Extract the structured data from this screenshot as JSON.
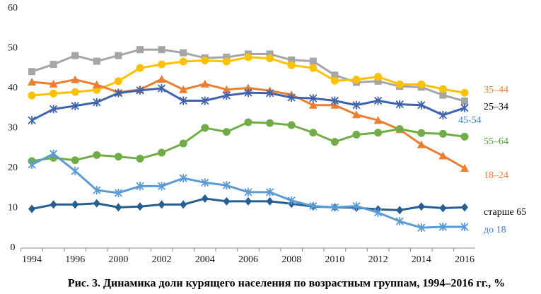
{
  "chart_data": {
    "type": "line",
    "caption": "Рис. 3. Динамика доли курящего населения по возрастным группам, 1994–2016 гг., %",
    "categories": [
      "1994",
      null,
      "1996",
      null,
      "2000",
      null,
      "2002",
      null,
      "2004",
      null,
      "2006",
      null,
      "2008",
      null,
      "2010",
      null,
      "2012",
      null,
      "2014",
      null,
      "2016"
    ],
    "ylim": [
      0,
      60
    ],
    "yticks": [
      0,
      10,
      20,
      30,
      40,
      50,
      60
    ],
    "grid": false,
    "series": [
      {
        "name": "25–34",
        "color": "#a5a5a5",
        "label_color": "#000000",
        "marker": "square",
        "values": [
          44.2,
          46.0,
          48.2,
          46.8,
          48.2,
          49.7,
          49.7,
          48.9,
          47.6,
          47.8,
          48.6,
          48.6,
          47.1,
          46.8,
          43.3,
          41.5,
          41.8,
          40.5,
          40.3,
          38.3,
          36.8
        ]
      },
      {
        "name": "35–44",
        "color": "#ffc000",
        "label_color": "#e07b39",
        "marker": "circle",
        "values": [
          38.2,
          38.7,
          39.1,
          39.6,
          41.8,
          45.1,
          46.0,
          46.7,
          47.0,
          46.7,
          47.8,
          47.5,
          45.8,
          45.1,
          41.9,
          42.2,
          42.9,
          41.0,
          41.0,
          39.8,
          38.9
        ]
      },
      {
        "name": "18–24",
        "color": "#ed7d31",
        "label_color": "#ed7d31",
        "marker": "triangle",
        "values": [
          41.6,
          41.1,
          42.2,
          40.9,
          39.0,
          39.7,
          42.3,
          39.7,
          41.1,
          39.7,
          40.1,
          39.4,
          38.4,
          35.8,
          35.8,
          33.4,
          32.0,
          29.7,
          25.9,
          23.1,
          20.0
        ]
      },
      {
        "name": "45-54",
        "color": "#3f64ad",
        "label_color": "#3f7fc4",
        "marker": "star",
        "values": [
          32.0,
          34.8,
          35.6,
          36.5,
          38.8,
          39.5,
          40.0,
          36.9,
          36.9,
          38.2,
          38.9,
          38.8,
          37.7,
          37.5,
          36.9,
          35.8,
          36.9,
          36.0,
          35.8,
          33.3,
          35.1
        ]
      },
      {
        "name": "55–64",
        "color": "#70ad47",
        "label_color": "#4ea33a",
        "marker": "circle",
        "values": [
          21.8,
          22.6,
          22.0,
          23.3,
          22.9,
          22.4,
          23.9,
          26.2,
          30.1,
          29.1,
          31.5,
          31.3,
          30.8,
          28.9,
          26.6,
          28.4,
          28.9,
          29.8,
          28.8,
          28.6,
          27.9
        ]
      },
      {
        "name": "старше 65",
        "color": "#255e91",
        "label_color": "#000000",
        "marker": "diamond",
        "values": [
          9.8,
          10.9,
          10.9,
          11.2,
          10.2,
          10.4,
          10.9,
          10.9,
          12.4,
          11.7,
          11.7,
          11.7,
          11.1,
          10.4,
          10.2,
          10.1,
          9.7,
          9.5,
          10.4,
          10.0,
          10.2
        ]
      },
      {
        "name": "до 18",
        "color": "#5b9bd5",
        "label_color": "#3f7fc4",
        "marker": "star",
        "values": [
          20.9,
          23.6,
          19.3,
          14.5,
          13.8,
          15.5,
          15.5,
          17.5,
          16.4,
          15.7,
          14.0,
          14.0,
          11.9,
          10.5,
          10.2,
          10.5,
          8.9,
          6.7,
          5.1,
          5.3,
          5.3
        ]
      }
    ]
  }
}
